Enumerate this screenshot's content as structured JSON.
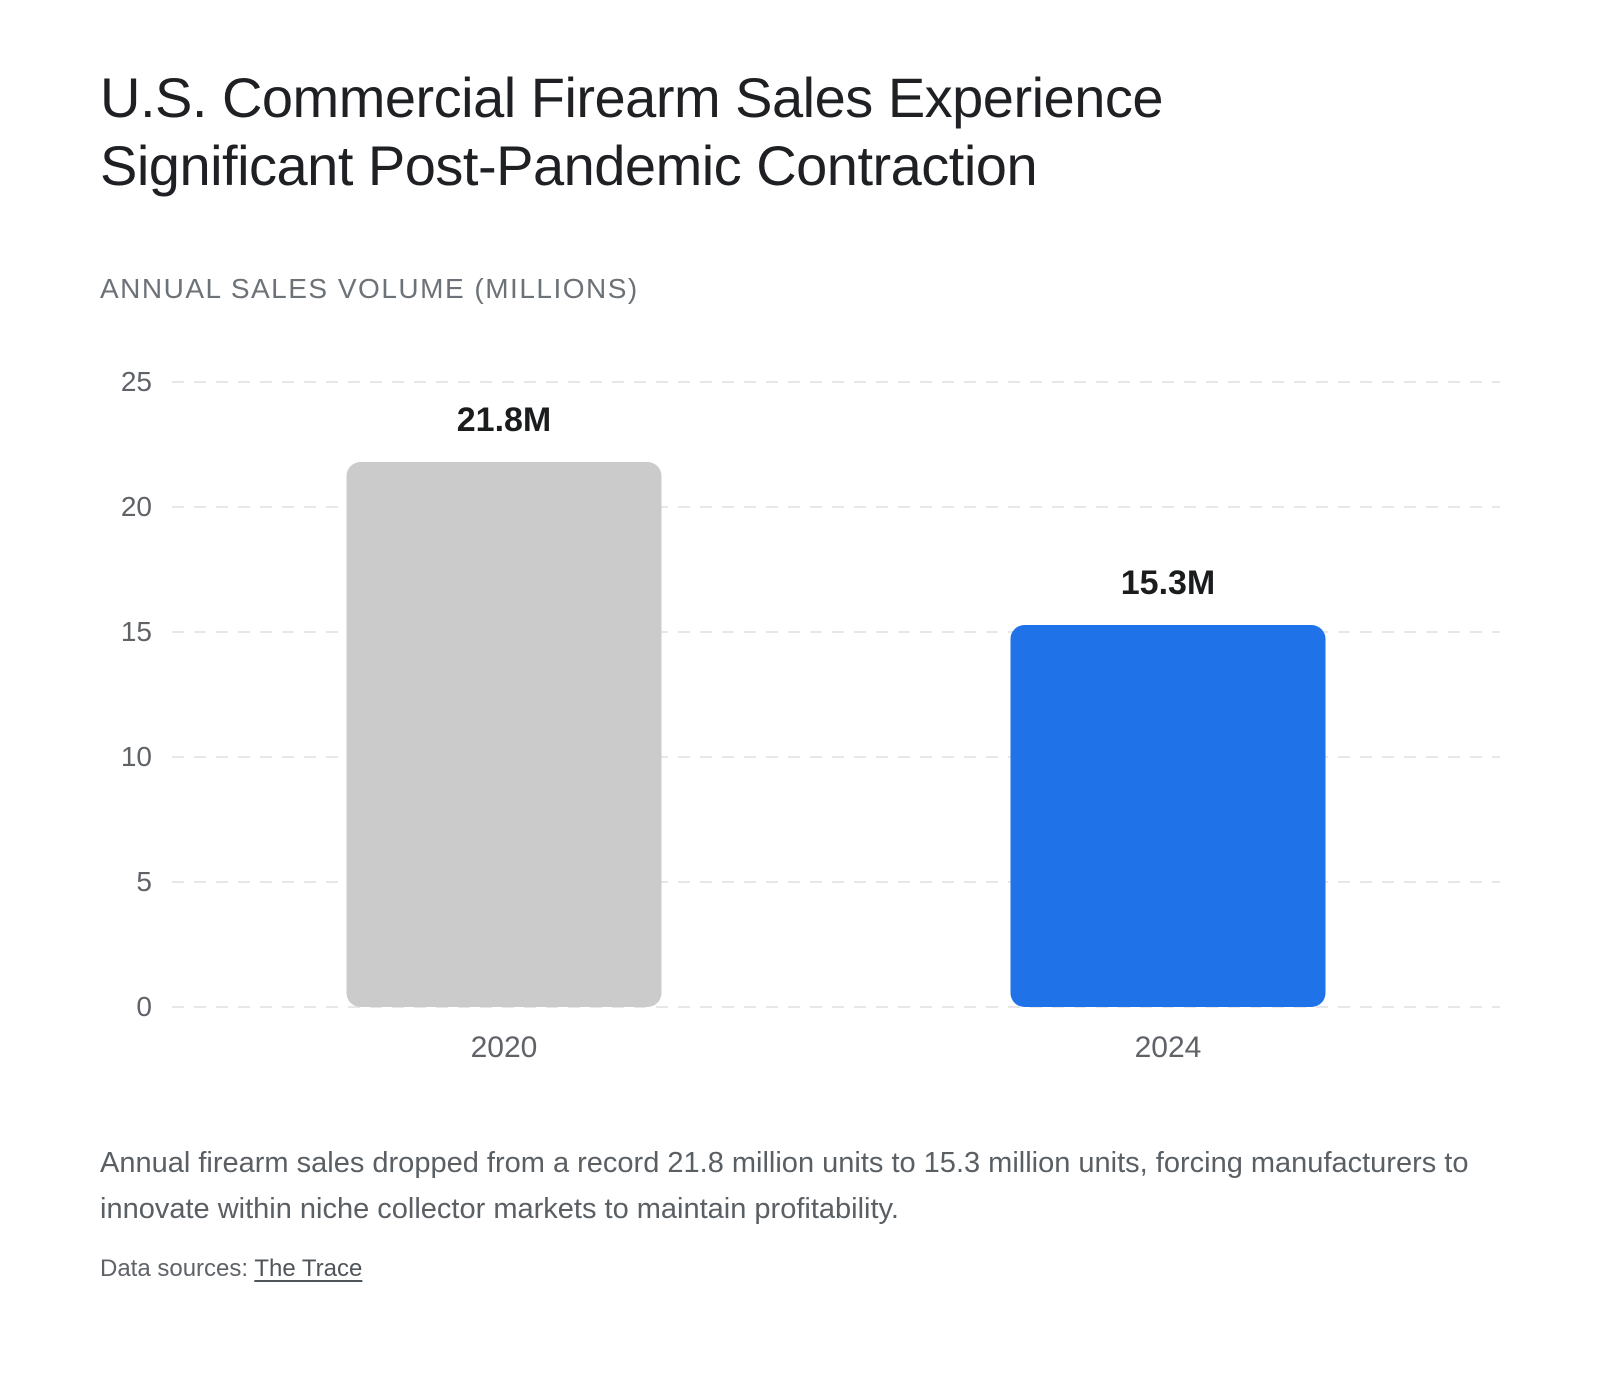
{
  "header": {
    "title_lines": [
      "U.S. Commercial Firearm Sales Experience",
      "Significant Post-Pandemic Contraction"
    ]
  },
  "chart_data": {
    "type": "bar",
    "title": "ANNUAL SALES VOLUME (MILLIONS)",
    "categories": [
      "2020",
      "2024"
    ],
    "values": [
      21.8,
      15.3
    ],
    "value_labels": [
      "21.8M",
      "15.3M"
    ],
    "bar_colors": [
      "#cbcbcb",
      "#1f72e8"
    ],
    "ylim": [
      0,
      25
    ],
    "yticks": [
      0,
      5,
      10,
      15,
      20,
      25
    ],
    "xlabel": "",
    "ylabel": "",
    "grid": "horizontal-dashed",
    "legend": "none"
  },
  "caption": {
    "text": "Annual firearm sales dropped from a record 21.8 million units to 15.3 million units, forcing manufacturers to innovate within niche collector markets to maintain profitability."
  },
  "sources": {
    "prefix": "Data sources: ",
    "link_label": "The Trace"
  },
  "colors": {
    "background": "#ffffff",
    "title_text": "#1e2023",
    "subtitle_text": "#6c7277",
    "axis_text": "#5f6368",
    "gridline": "#e7e7e7",
    "bar_2020": "#cbcbcb",
    "bar_2024": "#1f72e8",
    "value_label_text": "#1a1c1e",
    "caption_text": "#5a5f64"
  }
}
